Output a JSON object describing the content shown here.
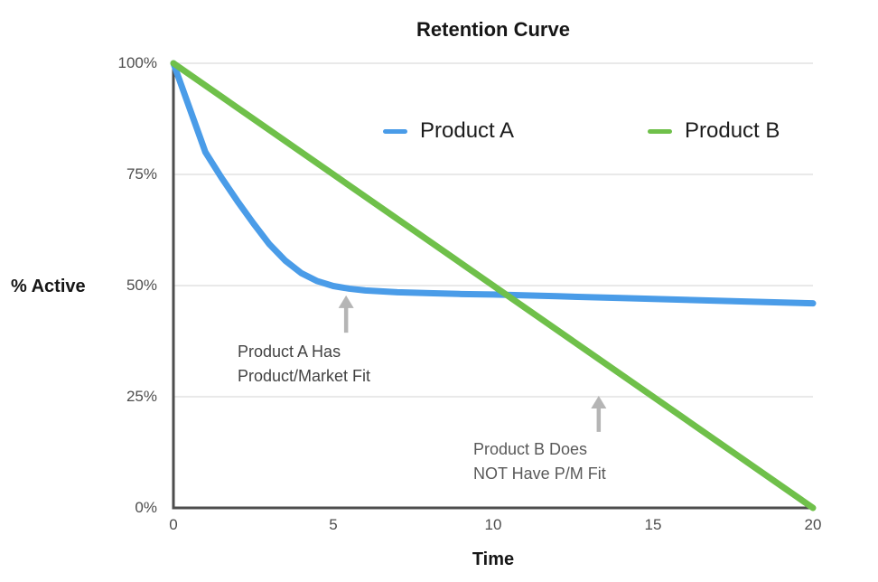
{
  "chart_data": {
    "type": "line",
    "title": "Retention Curve",
    "xlabel": "Time",
    "ylabel": "% Active",
    "xlim": [
      0,
      20
    ],
    "ylim": [
      0,
      100
    ],
    "x_ticks": [
      0,
      5,
      10,
      15,
      20
    ],
    "y_ticks": [
      {
        "value": 0,
        "label": "0%"
      },
      {
        "value": 25,
        "label": "25%"
      },
      {
        "value": 50,
        "label": "50%"
      },
      {
        "value": 75,
        "label": "75%"
      },
      {
        "value": 100,
        "label": "100%"
      }
    ],
    "grid": "horizontal-only",
    "legend_position": "top-center-inside",
    "series": [
      {
        "name": "Product A",
        "color": "#4a9ce8",
        "x": [
          0,
          0.5,
          1,
          1.5,
          2,
          2.5,
          3,
          3.5,
          4,
          4.5,
          5,
          5.5,
          6,
          7,
          8,
          9,
          10,
          12,
          14,
          16,
          18,
          20
        ],
        "values": [
          100,
          90,
          80,
          74.3,
          69,
          64,
          59.3,
          55.6,
          52.8,
          51,
          49.9,
          49.3,
          48.9,
          48.5,
          48.3,
          48.1,
          48.0,
          47.6,
          47.2,
          46.8,
          46.4,
          46.0
        ]
      },
      {
        "name": "Product B",
        "color": "#6fc04a",
        "x": [
          0,
          20
        ],
        "values": [
          100,
          0
        ]
      }
    ],
    "annotations": [
      {
        "text_line1": "Product A Has",
        "text_line2": "Product/Market Fit",
        "arrow_x": 5.4,
        "arrow_from_pct": 39.4,
        "arrow_to_pct": 47.8
      },
      {
        "text_line1": "Product B Does",
        "text_line2": "NOT Have P/M Fit",
        "arrow_x": 13.3,
        "arrow_from_pct": 17.1,
        "arrow_to_pct": 25.2
      }
    ]
  },
  "colors": {
    "background": "#ffffff",
    "axis": "#4d4d4d",
    "grid": "#e9e9e9",
    "tick_text": "#4d4d4d",
    "title_text": "#161616",
    "legend_text": "#1c1c1c",
    "annotation_arrow": "#b5b5b5",
    "product_a": "#4a9ce8",
    "product_b": "#6fc04a"
  }
}
